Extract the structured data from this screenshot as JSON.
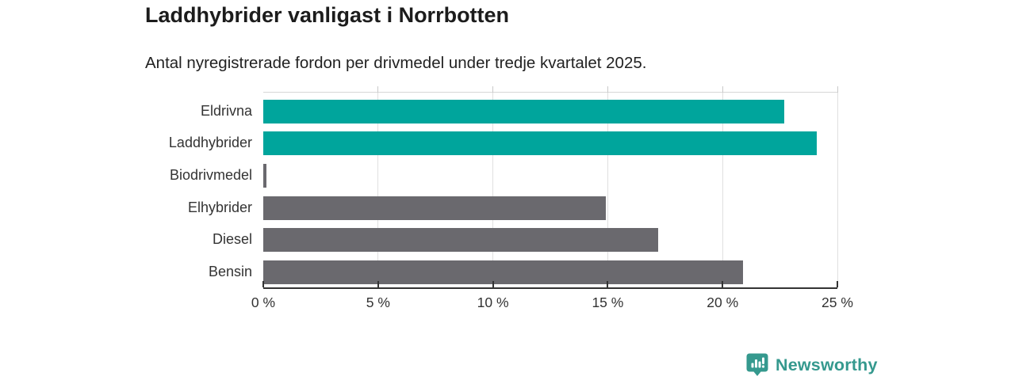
{
  "header": {
    "title": "Laddhybrider vanligast i Norrbotten",
    "subtitle": "Antal nyregistrerade fordon per drivmedel under tredje kvartalet 2025."
  },
  "chart_data": {
    "type": "bar",
    "orientation": "horizontal",
    "title": "Laddhybrider vanligast i Norrbotten",
    "subtitle": "Antal nyregistrerade fordon per drivmedel under tredje kvartalet 2025.",
    "categories": [
      "Eldrivna",
      "Laddhybrider",
      "Biodrivmedel",
      "Elhybrider",
      "Diesel",
      "Bensin"
    ],
    "values": [
      22.7,
      24.1,
      0.15,
      14.9,
      17.2,
      20.9
    ],
    "unit": "%",
    "bar_colors": [
      "#00a59c",
      "#00a59c",
      "#6a696e",
      "#6a696e",
      "#6a696e",
      "#6a696e"
    ],
    "xlim": [
      0,
      25
    ],
    "x_ticks": [
      0,
      5,
      10,
      15,
      20,
      25
    ],
    "x_tick_labels": [
      "0 %",
      "5 %",
      "10 %",
      "15 %",
      "20 %",
      "25 %"
    ],
    "grid": true,
    "legend": "none",
    "highlight_color": "#00a59c",
    "base_color": "#6a696e"
  },
  "branding": {
    "logo_text": "Newsworthy",
    "logo_icon": "newsworthy-pin-barchart-icon",
    "logo_color": "#35998e"
  },
  "colors": {
    "accent_teal": "#00a59c",
    "bar_gray": "#6a696e",
    "gridline": "#e0e0e0",
    "axis": "#333333",
    "text_dark": "#1c1c1c"
  }
}
